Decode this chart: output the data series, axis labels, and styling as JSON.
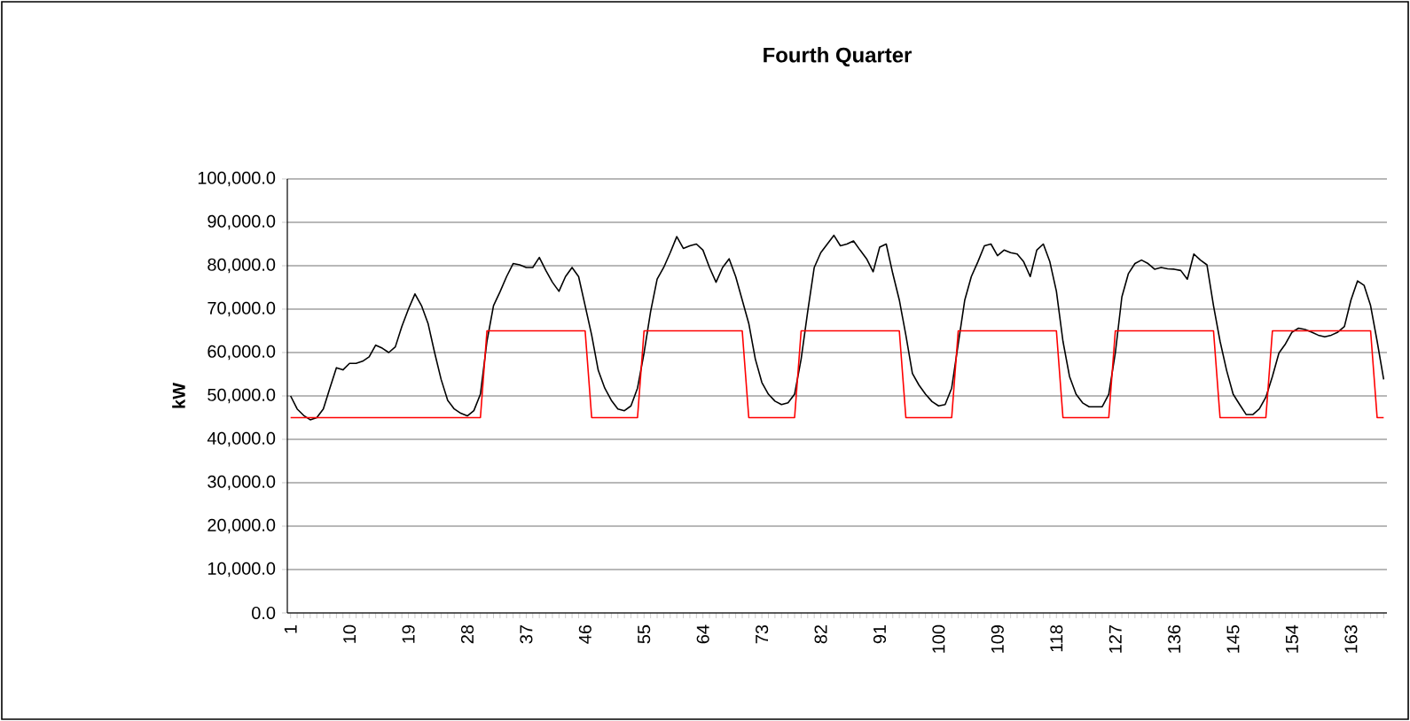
{
  "chart_data": {
    "type": "line",
    "title": "Fourth Quarter",
    "ylabel": "kW",
    "categories": [
      "1",
      null,
      null,
      null,
      null,
      null,
      null,
      null,
      null,
      "10",
      null,
      null,
      null,
      null,
      null,
      null,
      null,
      null,
      "19",
      null,
      null,
      null,
      null,
      null,
      null,
      null,
      null,
      "28",
      null,
      null,
      null,
      null,
      null,
      null,
      null,
      null,
      "37",
      null,
      null,
      null,
      null,
      null,
      null,
      null,
      null,
      "46",
      null,
      null,
      null,
      null,
      null,
      null,
      null,
      null,
      "55",
      null,
      null,
      null,
      null,
      null,
      null,
      null,
      null,
      "64",
      null,
      null,
      null,
      null,
      null,
      null,
      null,
      null,
      "73",
      null,
      null,
      null,
      null,
      null,
      null,
      null,
      null,
      "82",
      null,
      null,
      null,
      null,
      null,
      null,
      null,
      null,
      "91",
      null,
      null,
      null,
      null,
      null,
      null,
      null,
      null,
      "100",
      null,
      null,
      null,
      null,
      null,
      null,
      null,
      null,
      "109",
      null,
      null,
      null,
      null,
      null,
      null,
      null,
      null,
      "118",
      null,
      null,
      null,
      null,
      null,
      null,
      null,
      null,
      "127",
      null,
      null,
      null,
      null,
      null,
      null,
      null,
      null,
      "136",
      null,
      null,
      null,
      null,
      null,
      null,
      null,
      null,
      "145",
      null,
      null,
      null,
      null,
      null,
      null,
      null,
      null,
      "154",
      null,
      null,
      null,
      null,
      null,
      null,
      null,
      null,
      "163",
      null,
      null,
      null,
      null,
      null
    ],
    "series": [
      {
        "color": "#000000",
        "values": [
          50000,
          47000,
          45500,
          44500,
          45000,
          47000,
          51800,
          56500,
          56000,
          57500,
          57500,
          58000,
          59000,
          61700,
          61000,
          60000,
          61300,
          66000,
          70000,
          73500,
          70800,
          66700,
          60000,
          53800,
          49000,
          47000,
          46000,
          45400,
          46600,
          50400,
          62600,
          70800,
          74000,
          77500,
          80500,
          80200,
          79600,
          79600,
          81900,
          78900,
          76200,
          74100,
          77500,
          79600,
          77500,
          70800,
          64000,
          55900,
          51800,
          49000,
          47000,
          46600,
          47700,
          51800,
          59900,
          69400,
          76900,
          79600,
          83000,
          86700,
          84000,
          84600,
          85000,
          83600,
          79600,
          76200,
          79600,
          81600,
          77500,
          72100,
          66700,
          58500,
          53100,
          50400,
          48800,
          48000,
          48400,
          50400,
          58500,
          69400,
          79600,
          83000,
          85000,
          87000,
          84600,
          85000,
          85700,
          83600,
          81600,
          78600,
          84300,
          85000,
          78200,
          72100,
          64000,
          55200,
          52500,
          50400,
          48700,
          47700,
          48000,
          51800,
          62000,
          72100,
          77500,
          80900,
          84600,
          85000,
          82300,
          83600,
          83000,
          82700,
          80900,
          77500,
          83600,
          85000,
          80900,
          74100,
          62600,
          54500,
          50400,
          48400,
          47500,
          47500,
          47500,
          50400,
          59900,
          72800,
          78200,
          80500,
          81300,
          80500,
          79200,
          79600,
          79300,
          79200,
          78900,
          76900,
          82700,
          81300,
          80200,
          70800,
          62600,
          55900,
          50400,
          48000,
          45700,
          45700,
          47000,
          49700,
          54500,
          59900,
          62000,
          64700,
          65600,
          65300,
          64700,
          64000,
          63600,
          64000,
          64700,
          66000,
          72100,
          76500,
          75500,
          70800,
          62600,
          53800
        ]
      },
      {
        "color": "#ff0000",
        "values": [
          45000,
          45000,
          45000,
          45000,
          45000,
          45000,
          45000,
          45000,
          45000,
          45000,
          45000,
          45000,
          45000,
          45000,
          45000,
          45000,
          45000,
          45000,
          45000,
          45000,
          45000,
          45000,
          45000,
          45000,
          45000,
          45000,
          45000,
          45000,
          45000,
          45000,
          65000,
          65000,
          65000,
          65000,
          65000,
          65000,
          65000,
          65000,
          65000,
          65000,
          65000,
          65000,
          65000,
          65000,
          65000,
          65000,
          45000,
          45000,
          45000,
          45000,
          45000,
          45000,
          45000,
          45000,
          65000,
          65000,
          65000,
          65000,
          65000,
          65000,
          65000,
          65000,
          65000,
          65000,
          65000,
          65000,
          65000,
          65000,
          65000,
          65000,
          45000,
          45000,
          45000,
          45000,
          45000,
          45000,
          45000,
          45000,
          65000,
          65000,
          65000,
          65000,
          65000,
          65000,
          65000,
          65000,
          65000,
          65000,
          65000,
          65000,
          65000,
          65000,
          65000,
          65000,
          45000,
          45000,
          45000,
          45000,
          45000,
          45000,
          45000,
          45000,
          65000,
          65000,
          65000,
          65000,
          65000,
          65000,
          65000,
          65000,
          65000,
          65000,
          65000,
          65000,
          65000,
          65000,
          65000,
          65000,
          45000,
          45000,
          45000,
          45000,
          45000,
          45000,
          45000,
          45000,
          65000,
          65000,
          65000,
          65000,
          65000,
          65000,
          65000,
          65000,
          65000,
          65000,
          65000,
          65000,
          65000,
          65000,
          65000,
          65000,
          45000,
          45000,
          45000,
          45000,
          45000,
          45000,
          45000,
          45000,
          65000,
          65000,
          65000,
          65000,
          65000,
          65000,
          65000,
          65000,
          65000,
          65000,
          65000,
          65000,
          65000,
          65000,
          65000,
          65000,
          45000,
          45000
        ]
      }
    ],
    "ylim": [
      0,
      100000
    ],
    "yticks": [
      {
        "value": 0,
        "label": "0.0"
      },
      {
        "value": 10000,
        "label": "10,000.0"
      },
      {
        "value": 20000,
        "label": "20,000.0"
      },
      {
        "value": 30000,
        "label": "30,000.0"
      },
      {
        "value": 40000,
        "label": "40,000.0"
      },
      {
        "value": 50000,
        "label": "50,000.0"
      },
      {
        "value": 60000,
        "label": "60,000.0"
      },
      {
        "value": 70000,
        "label": "70,000.0"
      },
      {
        "value": 80000,
        "label": "80,000.0"
      },
      {
        "value": 90000,
        "label": "90,000.0"
      },
      {
        "value": 100000,
        "label": "100,000.0"
      }
    ],
    "grid": "y",
    "marker": "none",
    "line_style": "solid"
  }
}
